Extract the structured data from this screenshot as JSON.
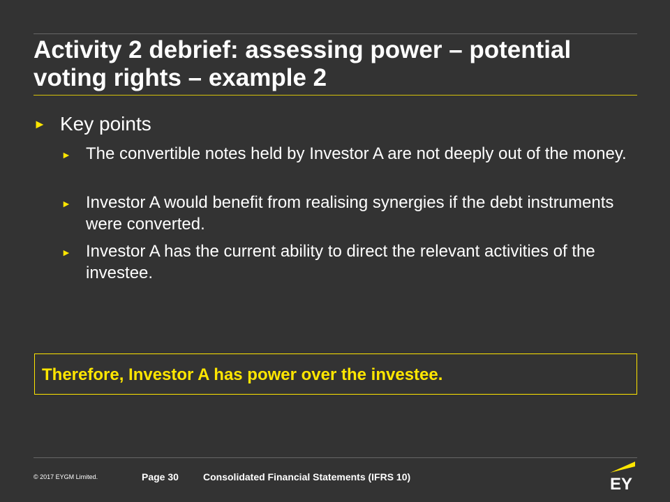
{
  "title": "Activity 2 debrief: assessing power – potential voting rights – example 2",
  "bullet_icon": "triangle-right-icon",
  "key_points": {
    "heading": "Key points",
    "items": [
      "The convertible notes held by Investor A are not deeply out of the money.",
      "Investor A would benefit from realising synergies if the debt instruments were converted.",
      "Investor A has the current ability to direct the relevant activities of the investee."
    ]
  },
  "conclusion": "Therefore, Investor A has power over the investee.",
  "footer": {
    "copyright": "© 2017 EYGM Limited.",
    "page": "Page 30",
    "course": "Consolidated Financial Statements (IFRS 10)",
    "logo": "EY"
  },
  "colors": {
    "accent": "#ffe600",
    "background": "#333333"
  }
}
